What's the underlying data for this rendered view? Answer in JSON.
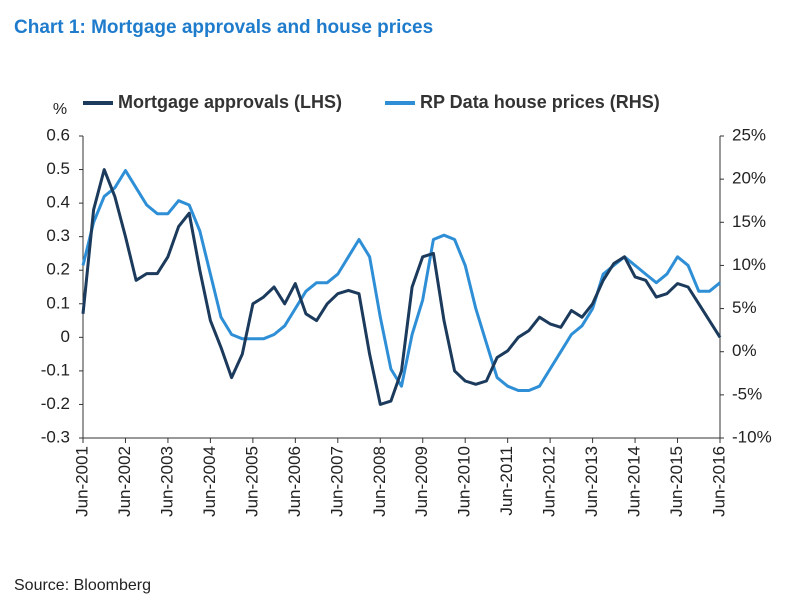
{
  "chart_data": {
    "type": "line",
    "title": "Chart 1: Mortgage approvals and house prices",
    "y_label": "%",
    "source": "Source: Bloomberg",
    "categories": [
      "Jun-2001",
      null,
      null,
      null,
      "Jun-2002",
      null,
      null,
      null,
      "Jun-2003",
      null,
      null,
      null,
      "Jun-2004",
      null,
      null,
      null,
      "Jun-2005",
      null,
      null,
      null,
      "Jun-2006",
      null,
      null,
      null,
      "Jun-2007",
      null,
      null,
      null,
      "Jun-2008",
      null,
      null,
      null,
      "Jun-2009",
      null,
      null,
      null,
      "Jun-2010",
      null,
      null,
      null,
      "Jun-2011",
      null,
      null,
      null,
      "Jun-2012",
      null,
      null,
      null,
      "Jun-2013",
      null,
      null,
      null,
      "Jun-2014",
      null,
      null,
      null,
      "Jun-2015",
      null,
      null,
      null,
      "Jun-2016"
    ],
    "series": [
      {
        "name": "Mortgage approvals (LHS)",
        "color": "#1b3a5c",
        "axis": "y",
        "values": [
          0.07,
          0.38,
          0.5,
          0.42,
          0.3,
          0.17,
          0.19,
          0.19,
          0.24,
          0.33,
          0.37,
          0.2,
          0.05,
          -0.03,
          -0.12,
          -0.05,
          0.1,
          0.12,
          0.15,
          0.1,
          0.16,
          0.07,
          0.05,
          0.1,
          0.13,
          0.14,
          0.13,
          -0.05,
          -0.2,
          -0.19,
          -0.1,
          0.15,
          0.24,
          0.25,
          0.05,
          -0.1,
          -0.13,
          -0.14,
          -0.13,
          -0.06,
          -0.04,
          0.0,
          0.02,
          0.06,
          0.04,
          0.03,
          0.08,
          0.06,
          0.1,
          0.17,
          0.22,
          0.24,
          0.18,
          0.17,
          0.12,
          0.13,
          0.16,
          0.15,
          0.1,
          0.05,
          0.0
        ]
      },
      {
        "name": "RP Data house prices (RHS)",
        "color": "#2f8fd6",
        "axis": "y2",
        "values": [
          10,
          15,
          18,
          19,
          21,
          19,
          17,
          16,
          16,
          17.5,
          17,
          14,
          9,
          4,
          2,
          1.5,
          1.5,
          1.5,
          2,
          3,
          5,
          7,
          8,
          8,
          9,
          11,
          13,
          11,
          4,
          -2,
          -4,
          2,
          6,
          13,
          13.5,
          13,
          10,
          5,
          1,
          -3,
          -4,
          -4.5,
          -4.5,
          -4,
          -2,
          0,
          2,
          3,
          5,
          9,
          10,
          11,
          10,
          9,
          8,
          9,
          11,
          10,
          7,
          7,
          8
        ]
      }
    ],
    "ylim": [
      -0.3,
      0.6
    ],
    "yticks": [
      -0.3,
      -0.2,
      -0.1,
      0,
      0.1,
      0.2,
      0.3,
      0.4,
      0.5,
      0.6
    ],
    "y2lim": [
      -10,
      25
    ],
    "y2ticks": [
      {
        "value": -10,
        "label": "-10%"
      },
      {
        "value": -5,
        "label": "-5%"
      },
      {
        "value": 0,
        "label": "0%"
      },
      {
        "value": 5,
        "label": "5%"
      },
      {
        "value": 10,
        "label": "10%"
      },
      {
        "value": 15,
        "label": "15%"
      },
      {
        "value": 20,
        "label": "20%"
      },
      {
        "value": 25,
        "label": "25%"
      }
    ],
    "grid": false
  }
}
